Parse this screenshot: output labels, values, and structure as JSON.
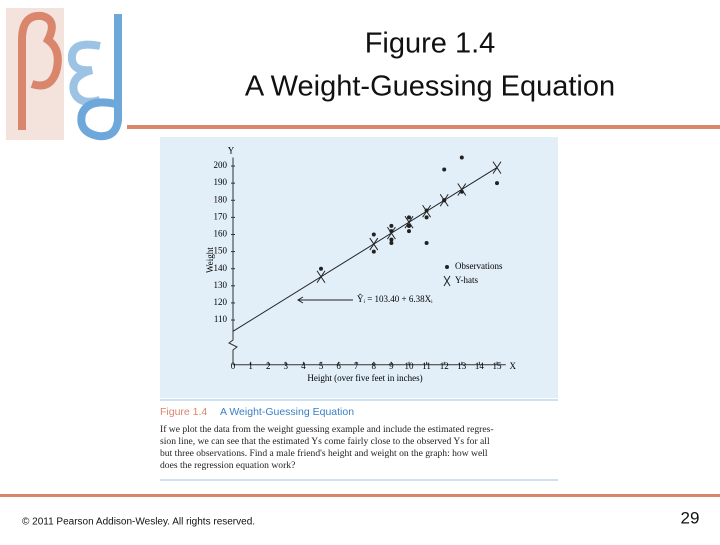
{
  "slide": {
    "title_lines": [
      "Figure 1.4",
      "A Weight-Guessing Equation"
    ],
    "footer": "© 2011 Pearson Addison-Wesley. All rights reserved.",
    "page_number": "29"
  },
  "caption": {
    "label": "Figure 1.4",
    "title": "A Weight-Guessing Equation",
    "lines": [
      "If we plot the data from the weight guessing example and include the estimated regres-",
      "sion line, we can see that the estimated Ys come fairly close to the observed Ys for all",
      "but three observations. Find a male friend's height and weight on the graph: how well",
      "does the regression equation work?"
    ]
  },
  "chart_data": {
    "type": "scatter",
    "x_label": "Height (over five feet in inches)",
    "y_label": "Weight",
    "x_axis_letter": "X",
    "y_axis_letter": "Y",
    "annotation": "Ŷᵢ = 103.40 + 6.38Xᵢ",
    "xlim": [
      0,
      15.5
    ],
    "ylim": [
      85,
      205
    ],
    "xticks": [
      0,
      1,
      2,
      3,
      4,
      5,
      6,
      7,
      8,
      9,
      10,
      11,
      12,
      13,
      14,
      15
    ],
    "yticks": [
      110,
      120,
      130,
      140,
      150,
      160,
      170,
      180,
      190,
      200
    ],
    "series": [
      {
        "name": "Observations",
        "color": "#222222",
        "marker": "dot",
        "x": [
          5,
          9,
          13,
          12,
          10,
          11,
          8,
          9,
          10,
          12,
          11,
          9,
          10,
          12,
          8,
          9,
          10,
          15,
          13,
          11
        ],
        "values": [
          140,
          157,
          205,
          198,
          162,
          174,
          150,
          165,
          170,
          180,
          170,
          162,
          165,
          180,
          160,
          155,
          165,
          190,
          185,
          155
        ]
      },
      {
        "name": "Y-hats",
        "color": "#222222",
        "marker": "cross",
        "x": [
          5,
          8,
          9,
          10,
          11,
          12,
          13,
          15
        ],
        "values": [
          135.3,
          154.4,
          160.8,
          167.2,
          173.6,
          180.0,
          186.3,
          199.1
        ]
      }
    ],
    "regression_line": {
      "x": [
        0,
        15
      ],
      "values": [
        103.4,
        199.1
      ]
    }
  }
}
